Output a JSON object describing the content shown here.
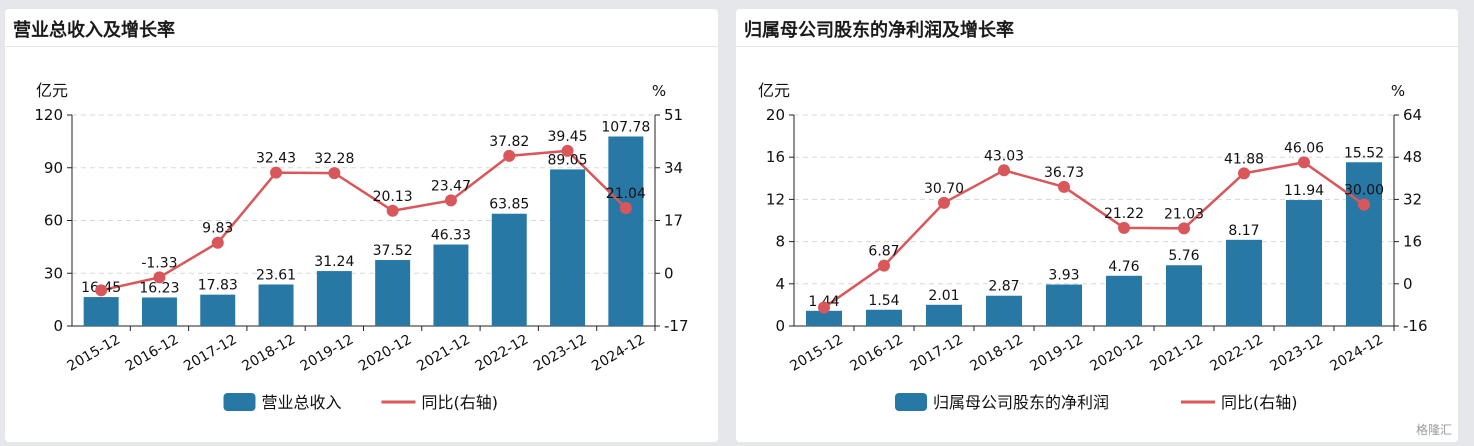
{
  "colors": {
    "bar": "#2878a6",
    "line": "#d9575a",
    "grid": "#d8d8d8",
    "axis": "#222222"
  },
  "watermark": "格隆汇",
  "chart_data": [
    {
      "type": "bar",
      "title": "营业总收入及增长率",
      "categories": [
        "2015-12",
        "2016-12",
        "2017-12",
        "2018-12",
        "2019-12",
        "2020-12",
        "2021-12",
        "2022-12",
        "2023-12",
        "2024-12"
      ],
      "left_unit": "亿元",
      "right_unit": "%",
      "left_ticks": [
        "0",
        "30",
        "60",
        "90",
        "120"
      ],
      "right_ticks": [
        "-17",
        "0",
        "17",
        "34",
        "51"
      ],
      "ylim": [
        0,
        120
      ],
      "y2lim": [
        -17,
        51
      ],
      "series": [
        {
          "name": "营业总收入",
          "type": "bar",
          "axis": "left",
          "values": [
            16.45,
            16.23,
            17.83,
            23.61,
            31.24,
            37.52,
            46.33,
            63.85,
            89.05,
            107.78
          ],
          "labels": [
            "16.45",
            "16.23",
            "17.83",
            "23.61",
            "31.24",
            "37.52",
            "46.33",
            "63.85",
            "89.05",
            "107.78"
          ]
        },
        {
          "name": "同比(右轴)",
          "type": "line",
          "axis": "right",
          "values": [
            -5.5,
            -1.33,
            9.83,
            32.43,
            32.28,
            20.13,
            23.47,
            37.82,
            39.45,
            21.04
          ],
          "labels": [
            "",
            "-1.33",
            "9.83",
            "32.43",
            "32.28",
            "20.13",
            "23.47",
            "37.82",
            "39.45",
            "21.04"
          ]
        }
      ],
      "legend": "bottom"
    },
    {
      "type": "bar",
      "title": "归属母公司股东的净利润及增长率",
      "categories": [
        "2015-12",
        "2016-12",
        "2017-12",
        "2018-12",
        "2019-12",
        "2020-12",
        "2021-12",
        "2022-12",
        "2023-12",
        "2024-12"
      ],
      "left_unit": "亿元",
      "right_unit": "%",
      "left_ticks": [
        "0",
        "4",
        "8",
        "12",
        "16",
        "20"
      ],
      "right_ticks": [
        "-16",
        "0",
        "16",
        "32",
        "48",
        "64"
      ],
      "ylim": [
        0,
        20
      ],
      "y2lim": [
        -16,
        64
      ],
      "series": [
        {
          "name": "归属母公司股东的净利润",
          "type": "bar",
          "axis": "left",
          "values": [
            1.44,
            1.54,
            2.01,
            2.87,
            3.93,
            4.76,
            5.76,
            8.17,
            11.94,
            15.52
          ],
          "labels": [
            "1.44",
            "1.54",
            "2.01",
            "2.87",
            "3.93",
            "4.76",
            "5.76",
            "8.17",
            "11.94",
            "15.52"
          ]
        },
        {
          "name": "同比(右轴)",
          "type": "line",
          "axis": "right",
          "values": [
            -9.0,
            6.87,
            30.7,
            43.03,
            36.73,
            21.22,
            21.03,
            41.88,
            46.06,
            30.0
          ],
          "labels": [
            "",
            "6.87",
            "30.70",
            "43.03",
            "36.73",
            "21.22",
            "21.03",
            "41.88",
            "46.06",
            "30.00"
          ]
        }
      ],
      "legend": "bottom"
    }
  ]
}
